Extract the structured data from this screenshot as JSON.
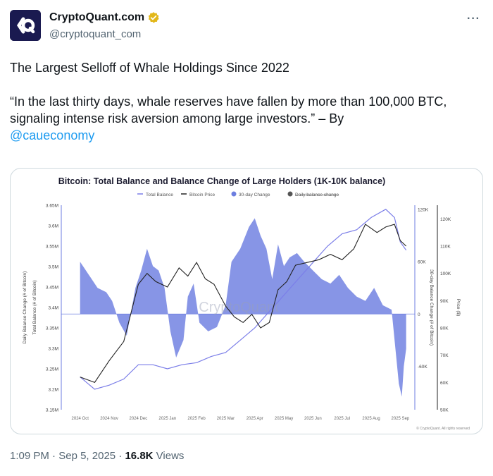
{
  "author": {
    "display_name": "CryptoQuant.com",
    "handle": "@cryptoquant_com",
    "verified_color": "#e2b719",
    "avatar_bg": "#1a1a50"
  },
  "more_label": "···",
  "tweet": {
    "line1": "The Largest Selloff of Whale Holdings Since 2022",
    "line2": "“In the last thirty days, whale reserves have fallen by more than 100,000 BTC, signaling intense risk aversion among large investors.” – By",
    "mention": "@caueconomy"
  },
  "footer": {
    "time": "1:09 PM",
    "date": "Sep 5, 2025",
    "views_count": "16.8K",
    "views_label": "Views"
  },
  "chart_data": {
    "type": "line",
    "title": "Bitcoin: Total Balance and Balance Change of Large Holders (1K-10K balance)",
    "legend": [
      "Total Balance",
      "Bitcoin Price",
      "30-day Change",
      "Daily balance change"
    ],
    "legend_placement": "top",
    "watermark": "CryptoQuant",
    "credit": "© CryptoQuant. All rights reserved",
    "left_axis_label": "Daily Balance Change (# of Bitcoin)",
    "left2_axis_label": "Total Balance (# of Bitcoin)",
    "right_axis_label": "30-day Balance Change (# of Bitcoin)",
    "right2_axis_label": "Price ($)",
    "x_ticks": [
      "2024 Oct",
      "2024 Nov",
      "2024 Dec",
      "2025 Jan",
      "2025 Feb",
      "2025 Mar",
      "2025 Apr",
      "2025 May",
      "2025 Jun",
      "2025 Jul",
      "2025 Aug",
      "2025 Sep"
    ],
    "left_ticks": [
      "3.65M",
      "3.6M",
      "3.55M",
      "3.5M",
      "3.45M",
      "3.4M",
      "3.35M",
      "3.3M",
      "3.25M",
      "3.2M",
      "3.15M"
    ],
    "left_range": [
      3150000,
      3650000
    ],
    "right_ticks": [
      "120K",
      "60K",
      "0",
      "-60K"
    ],
    "right_range": [
      -110000,
      125000
    ],
    "price_ticks": [
      "120K",
      "110K",
      "100K",
      "90K",
      "80K",
      "70K",
      "60K",
      "50K"
    ],
    "price_range": [
      50000,
      125000
    ],
    "colors": {
      "total_balance": "#7b7ee8",
      "price": "#222222",
      "change": "#6c7ee0"
    },
    "series": [
      {
        "name": "30-day Change",
        "x": [
          0,
          0.3,
          0.6,
          0.9,
          1.1,
          1.35,
          1.6,
          1.9,
          2.1,
          2.3,
          2.5,
          2.7,
          2.9,
          3.1,
          3.3,
          3.55,
          3.7,
          3.9,
          4.1,
          4.4,
          4.7,
          5.0,
          5.2,
          5.5,
          5.8,
          6.0,
          6.2,
          6.4,
          6.6,
          6.8,
          7.0,
          7.2,
          7.45,
          7.7,
          8.0,
          8.3,
          8.6,
          8.9,
          9.2,
          9.5,
          9.8,
          10.1,
          10.4,
          10.7,
          10.95,
          11.05,
          11.12,
          11.2
        ],
        "values": [
          60000,
          45000,
          30000,
          25000,
          15000,
          -10000,
          -25000,
          30000,
          50000,
          75000,
          55000,
          50000,
          30000,
          -20000,
          -50000,
          -30000,
          20000,
          35000,
          -10000,
          -20000,
          -15000,
          10000,
          60000,
          75000,
          100000,
          110000,
          90000,
          75000,
          40000,
          80000,
          55000,
          65000,
          70000,
          60000,
          50000,
          40000,
          35000,
          45000,
          30000,
          20000,
          15000,
          30000,
          10000,
          5000,
          -80000,
          -95000,
          -60000,
          -40000
        ]
      },
      {
        "name": "Total Balance",
        "x": [
          0,
          0.5,
          1.0,
          1.5,
          2.0,
          2.5,
          3.0,
          3.5,
          4.0,
          4.5,
          5.0,
          5.5,
          6.0,
          6.5,
          7.0,
          7.5,
          8.0,
          8.5,
          9.0,
          9.5,
          10.0,
          10.5,
          10.8,
          11.0,
          11.2
        ],
        "values": [
          3230000,
          3200000,
          3210000,
          3225000,
          3260000,
          3260000,
          3250000,
          3260000,
          3265000,
          3280000,
          3290000,
          3320000,
          3350000,
          3390000,
          3430000,
          3470000,
          3510000,
          3550000,
          3580000,
          3590000,
          3620000,
          3640000,
          3620000,
          3560000,
          3540000
        ]
      },
      {
        "name": "Bitcoin Price",
        "x": [
          0,
          0.5,
          1.0,
          1.5,
          2.0,
          2.3,
          2.6,
          3.0,
          3.4,
          3.7,
          4.0,
          4.3,
          4.6,
          5.0,
          5.3,
          5.6,
          5.9,
          6.2,
          6.5,
          6.8,
          7.1,
          7.4,
          7.8,
          8.2,
          8.6,
          9.0,
          9.4,
          9.8,
          10.2,
          10.5,
          10.8,
          11.0,
          11.2
        ],
        "values": [
          62000,
          60000,
          68000,
          75000,
          96000,
          100000,
          97000,
          95000,
          102000,
          99000,
          104000,
          98000,
          96000,
          88000,
          84000,
          82000,
          85000,
          80000,
          82000,
          94000,
          97000,
          103000,
          104000,
          105000,
          107000,
          105000,
          109000,
          118000,
          115000,
          117000,
          118000,
          112000,
          110000
        ]
      }
    ]
  }
}
